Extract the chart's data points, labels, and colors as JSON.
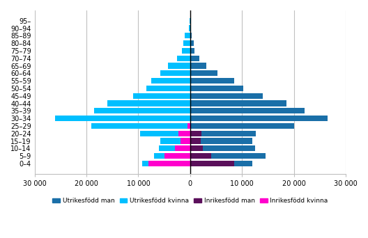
{
  "age_groups": [
    "95–",
    "90–94",
    "85–89",
    "80–84",
    "75–79",
    "70–74",
    "65–69",
    "60–64",
    "55–59",
    "50–54",
    "45–49",
    "40–44",
    "35–39",
    "30–34",
    "25–29",
    "20–24",
    "15–19",
    "10–14",
    "5–9",
    "0–4"
  ],
  "utrikesfodd_man": [
    50,
    150,
    350,
    650,
    850,
    1700,
    3100,
    5200,
    8500,
    10200,
    14000,
    18500,
    22000,
    26500,
    20000,
    10500,
    10000,
    10000,
    10500,
    3500
  ],
  "utrikesfodd_kvinna": [
    100,
    300,
    1000,
    1300,
    1600,
    2600,
    4300,
    5700,
    7500,
    8500,
    11000,
    16000,
    18500,
    26000,
    18500,
    7500,
    4000,
    3000,
    2000,
    1200
  ],
  "inrikesfodd_man": [
    0,
    0,
    0,
    0,
    0,
    0,
    0,
    0,
    0,
    0,
    0,
    0,
    0,
    0,
    0,
    2200,
    2000,
    2500,
    4000,
    8500
  ],
  "inrikesfodd_kvinna": [
    0,
    0,
    0,
    0,
    0,
    0,
    0,
    0,
    0,
    0,
    0,
    0,
    0,
    0,
    500,
    2200,
    1800,
    3000,
    5000,
    8000
  ],
  "color_utrikesfodd_man": "#1A6FA8",
  "color_utrikesfodd_kvinna": "#00BFFF",
  "color_inrikesfodd_man": "#5B0F5B",
  "color_inrikesfodd_kvinna": "#FF00CC",
  "xlim": 30000,
  "legend_labels": [
    "Utrikesfödd man",
    "Utrikesfödd kvinna",
    "Inrikesfödd man",
    "Inrikesfödd kvinna"
  ],
  "background_color": "#ffffff",
  "grid_color": "#c0c0c0"
}
